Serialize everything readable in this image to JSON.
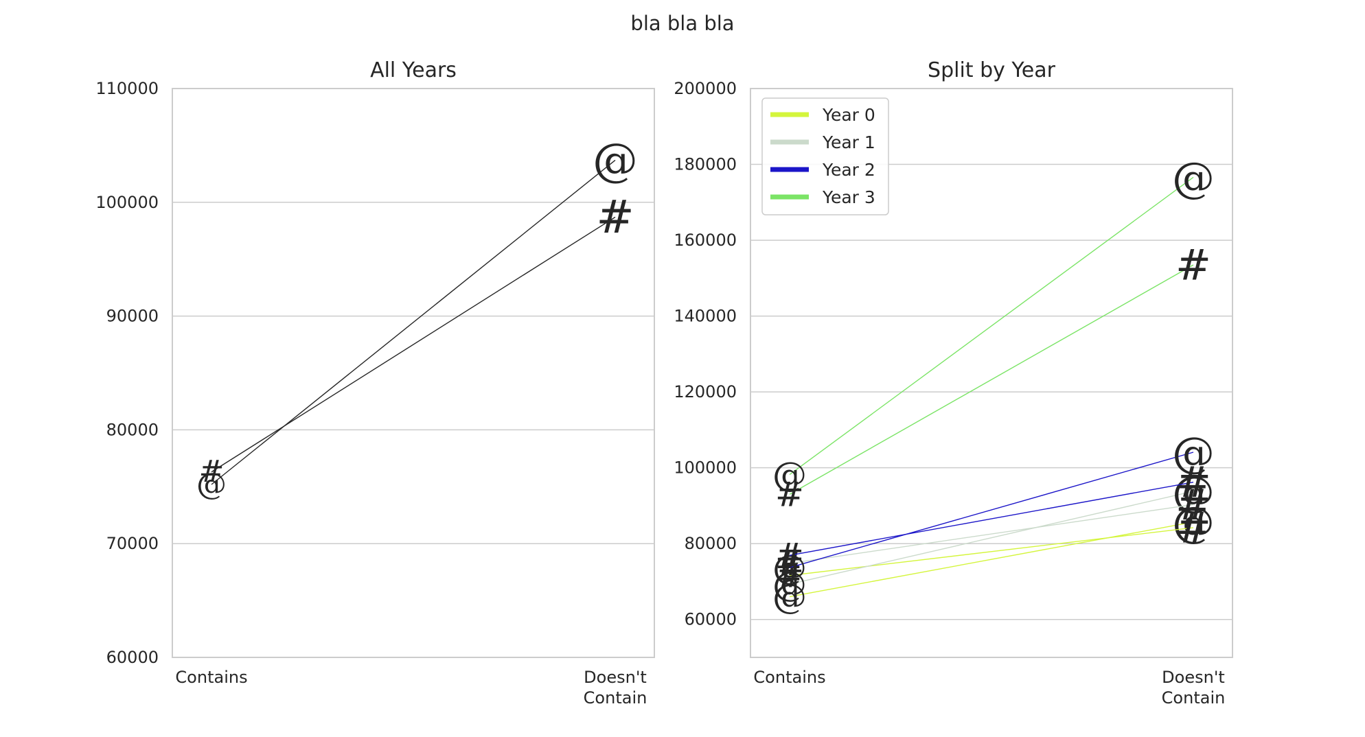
{
  "figure": {
    "suptitle": "bla bla bla"
  },
  "chart_data": [
    {
      "type": "line",
      "title": "All Years",
      "categories": [
        "Contains",
        "Doesn't Contain"
      ],
      "ylim": [
        60000,
        110000
      ],
      "yticks": [
        "60000",
        "70000",
        "80000",
        "90000",
        "100000",
        "110000"
      ],
      "grid": "horizontal",
      "series": [
        {
          "marker": "@",
          "color": "#262626",
          "values": [
            75200,
            103700
          ]
        },
        {
          "marker": "#",
          "color": "#262626",
          "values": [
            76300,
            98700
          ]
        }
      ]
    },
    {
      "type": "line",
      "title": "Split by Year",
      "categories": [
        "Contains",
        "Doesn't Contain"
      ],
      "ylim": [
        50000,
        200000
      ],
      "yticks": [
        "60000",
        "80000",
        "100000",
        "120000",
        "140000",
        "160000",
        "180000",
        "200000"
      ],
      "grid": "horizontal",
      "legend": {
        "position": "upper-left",
        "entries": [
          {
            "label": "Year 0",
            "color": "#d4f53c"
          },
          {
            "label": "Year 1",
            "color": "#cbdacb"
          },
          {
            "label": "Year 2",
            "color": "#1b15c8"
          },
          {
            "label": "Year 3",
            "color": "#7be466"
          }
        ]
      },
      "series": [
        {
          "year": "Year 0",
          "marker": "@",
          "color": "#d4f53c",
          "values": [
            66000,
            85700
          ]
        },
        {
          "year": "Year 0",
          "marker": "#",
          "color": "#d4f53c",
          "values": [
            71600,
            84200
          ]
        },
        {
          "year": "Year 1",
          "marker": "@",
          "color": "#cbdacb",
          "values": [
            69300,
            93800
          ]
        },
        {
          "year": "Year 1",
          "marker": "#",
          "color": "#cbdacb",
          "values": [
            74800,
            90300
          ]
        },
        {
          "year": "Year 2",
          "marker": "@",
          "color": "#1b15c8",
          "values": [
            73700,
            104100
          ]
        },
        {
          "year": "Year 2",
          "marker": "#",
          "color": "#1b15c8",
          "values": [
            76900,
            96200
          ]
        },
        {
          "year": "Year 3",
          "marker": "@",
          "color": "#7be466",
          "values": [
            98200,
            176600
          ]
        },
        {
          "year": "Year 3",
          "marker": "#",
          "color": "#7be466",
          "values": [
            93000,
            153500
          ]
        }
      ]
    }
  ]
}
